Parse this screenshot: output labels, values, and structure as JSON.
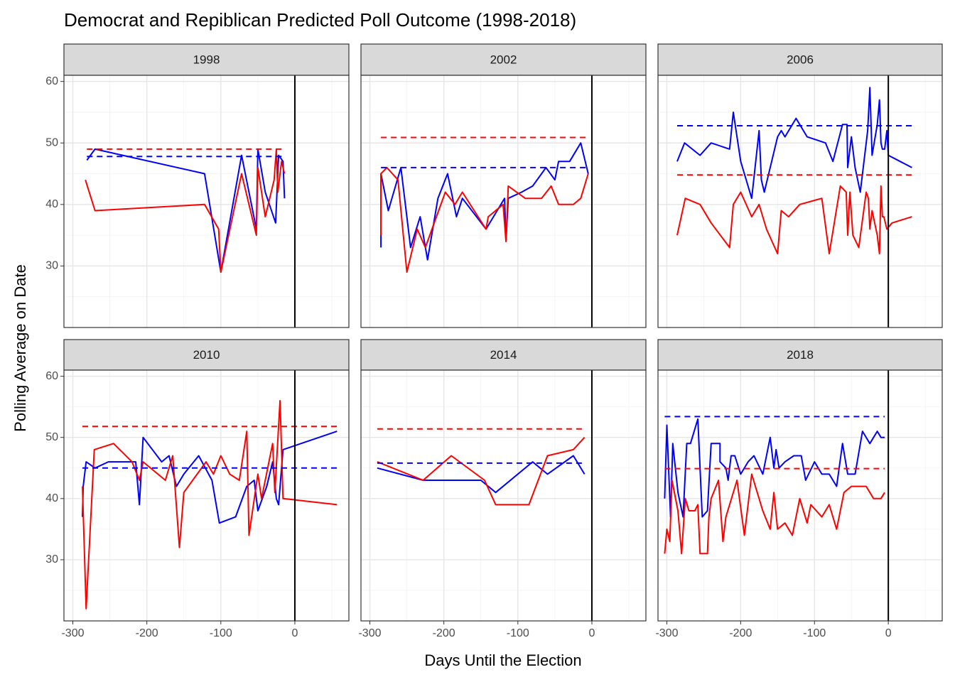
{
  "title": "Democrat and Repiblican Predicted Poll Outcome (1998-2018)",
  "x_label": "Days Until the Election",
  "y_label": "Polling Average on Date",
  "chart_data": [
    {
      "type": "line",
      "title": "1998",
      "xlim": [
        -312,
        73
      ],
      "ylim": [
        20,
        61
      ],
      "xticks": [
        -300,
        -200,
        -100,
        0
      ],
      "yticks": [
        30,
        40,
        50,
        60
      ],
      "xminor": [
        -250,
        -150,
        -50,
        50
      ],
      "yminor": [
        25,
        35,
        45,
        55
      ],
      "vline": 0,
      "grid": true,
      "series": [
        {
          "color": "#0000ff",
          "x": [
            -281,
            -270,
            -122,
            -100,
            -72,
            -52,
            -50,
            -40,
            -26,
            -22,
            -16,
            -14
          ],
          "values": [
            47.2,
            49,
            45,
            29,
            48,
            36,
            49,
            42,
            37,
            48,
            47,
            41
          ]
        },
        {
          "color": "#ff0000",
          "x": [
            -283,
            -270,
            -122,
            -103,
            -100,
            -72,
            -52,
            -50,
            -40,
            -28,
            -25,
            -23,
            -18,
            -14
          ],
          "values": [
            44,
            39,
            40,
            36,
            29,
            45,
            35,
            46,
            38,
            44,
            49,
            42,
            47,
            45
          ]
        },
        {
          "color": "#ff0000",
          "dash": true,
          "x": [
            -281,
            -14
          ],
          "values": [
            49,
            49
          ]
        },
        {
          "color": "#0000ff",
          "dash": true,
          "x": [
            -281,
            -14
          ],
          "values": [
            47.8,
            47.8
          ]
        }
      ]
    },
    {
      "type": "line",
      "title": "2002",
      "xlim": [
        -312,
        73
      ],
      "ylim": [
        20,
        61
      ],
      "xticks": [
        -300,
        -200,
        -100,
        0
      ],
      "yticks": [
        30,
        40,
        50,
        60
      ],
      "xminor": [
        -250,
        -150,
        -50,
        50
      ],
      "yminor": [
        25,
        35,
        45,
        55
      ],
      "vline": 0,
      "grid": true,
      "series": [
        {
          "color": "#0000ff",
          "x": [
            -285,
            -285,
            -275,
            -258,
            -245,
            -232,
            -222,
            -208,
            -195,
            -183,
            -175,
            -143,
            -118,
            -116,
            -113,
            -95,
            -80,
            -62,
            -50,
            -45,
            -30,
            -15,
            -5
          ],
          "values": [
            33,
            45,
            39,
            46,
            33,
            38,
            31,
            41,
            45,
            38,
            41,
            36,
            41,
            34,
            41,
            42,
            43,
            46,
            44,
            47,
            47,
            50,
            45
          ]
        },
        {
          "color": "#ff0000",
          "x": [
            -285,
            -285,
            -277,
            -262,
            -250,
            -236,
            -225,
            -198,
            -185,
            -175,
            -143,
            -140,
            -120,
            -116,
            -113,
            -90,
            -68,
            -55,
            -45,
            -25,
            -15,
            -5
          ],
          "values": [
            35,
            45,
            46,
            44,
            29,
            36,
            33,
            42,
            40,
            42,
            36,
            38,
            40,
            34,
            43,
            41,
            41,
            43,
            40,
            40,
            41,
            45
          ]
        },
        {
          "color": "#ff0000",
          "dash": true,
          "x": [
            -285,
            -5
          ],
          "values": [
            50.9,
            50.9
          ]
        },
        {
          "color": "#0000ff",
          "dash": true,
          "x": [
            -285,
            -5
          ],
          "values": [
            46,
            46
          ]
        }
      ]
    },
    {
      "type": "line",
      "title": "2006",
      "xlim": [
        -312,
        73
      ],
      "ylim": [
        20,
        61
      ],
      "xticks": [
        -300,
        -200,
        -100,
        0
      ],
      "yticks": [
        30,
        40,
        50,
        60
      ],
      "xminor": [
        -250,
        -150,
        -50,
        50
      ],
      "yminor": [
        25,
        35,
        45,
        55
      ],
      "vline": 0,
      "grid": true,
      "series": [
        {
          "color": "#0000ff",
          "x": [
            -286,
            -276,
            -255,
            -240,
            -215,
            -210,
            -200,
            -185,
            -175,
            -172,
            -168,
            -150,
            -145,
            -140,
            -125,
            -110,
            -85,
            -75,
            -62,
            -56,
            -55,
            -50,
            -45,
            -38,
            -28,
            -25,
            -22,
            -15,
            -12,
            -10,
            -8,
            -5,
            -2,
            0,
            32
          ],
          "values": [
            47,
            50,
            48,
            50,
            49,
            55,
            47,
            41,
            52,
            44,
            42,
            51,
            52,
            51,
            54,
            51,
            50,
            47,
            53,
            53,
            46,
            51,
            46,
            42,
            52,
            59,
            48,
            53,
            57,
            50,
            49,
            49,
            52,
            48,
            46
          ]
        },
        {
          "color": "#ff0000",
          "x": [
            -286,
            -275,
            -255,
            -240,
            -215,
            -210,
            -200,
            -185,
            -175,
            -165,
            -150,
            -145,
            -135,
            -120,
            -90,
            -80,
            -65,
            -57,
            -55,
            -52,
            -48,
            -40,
            -30,
            -27,
            -25,
            -22,
            -15,
            -12,
            -10,
            -8,
            -6,
            -2,
            5,
            32
          ],
          "values": [
            35,
            41,
            40,
            37,
            33,
            40,
            42,
            38,
            40,
            36,
            32,
            39,
            38,
            40,
            41,
            32,
            43,
            42,
            35,
            42,
            35,
            33,
            42,
            41,
            36,
            39,
            35,
            32,
            43,
            38,
            38,
            36,
            37,
            38
          ]
        },
        {
          "color": "#0000ff",
          "dash": true,
          "x": [
            -286,
            32
          ],
          "values": [
            52.8,
            52.8
          ]
        },
        {
          "color": "#ff0000",
          "dash": true,
          "x": [
            -286,
            32
          ],
          "values": [
            44.8,
            44.8
          ]
        }
      ]
    },
    {
      "type": "line",
      "title": "2010",
      "xlim": [
        -312,
        73
      ],
      "ylim": [
        20,
        61
      ],
      "xticks": [
        -300,
        -200,
        -100,
        0
      ],
      "yticks": [
        30,
        40,
        50,
        60
      ],
      "xminor": [
        -250,
        -150,
        -50,
        50
      ],
      "yminor": [
        25,
        35,
        45,
        55
      ],
      "vline": 0,
      "grid": true,
      "series": [
        {
          "color": "#0000ff",
          "x": [
            -287,
            -286,
            -282,
            -270,
            -252,
            -215,
            -210,
            -205,
            -180,
            -170,
            -160,
            -150,
            -130,
            -112,
            -102,
            -80,
            -65,
            -55,
            -50,
            -38,
            -30,
            -25,
            -22,
            -16,
            57
          ],
          "values": [
            37,
            42,
            46,
            45,
            46,
            46,
            39,
            50,
            46,
            47,
            42,
            44,
            47,
            43,
            36,
            37,
            42,
            43,
            38,
            42,
            46,
            40,
            39,
            48,
            51
          ]
        },
        {
          "color": "#ff0000",
          "x": [
            -287,
            -282,
            -271,
            -245,
            -220,
            -210,
            -205,
            -175,
            -165,
            -156,
            -150,
            -120,
            -110,
            -100,
            -88,
            -75,
            -65,
            -62,
            -50,
            -45,
            -30,
            -27,
            -20,
            -16,
            57
          ],
          "values": [
            42,
            22,
            48,
            49,
            46,
            43,
            46,
            43,
            47,
            32,
            41,
            46,
            44,
            47,
            44,
            43,
            51,
            34,
            44,
            40,
            49,
            41,
            56,
            40,
            39
          ]
        },
        {
          "color": "#ff0000",
          "dash": true,
          "x": [
            -287,
            57
          ],
          "values": [
            51.8,
            51.8
          ]
        },
        {
          "color": "#0000ff",
          "dash": true,
          "x": [
            -287,
            57
          ],
          "values": [
            45,
            45
          ]
        }
      ]
    },
    {
      "type": "line",
      "title": "2014",
      "xlim": [
        -312,
        73
      ],
      "ylim": [
        20,
        61
      ],
      "xticks": [
        -300,
        -200,
        -100,
        0
      ],
      "yticks": [
        30,
        40,
        50,
        60
      ],
      "xminor": [
        -250,
        -150,
        -50,
        50
      ],
      "yminor": [
        25,
        35,
        45,
        55
      ],
      "vline": 0,
      "grid": true,
      "series": [
        {
          "color": "#0000ff",
          "x": [
            -290,
            -228,
            -150,
            -130,
            -80,
            -60,
            -25,
            -10
          ],
          "values": [
            45,
            43,
            43,
            41,
            46,
            44,
            47,
            44
          ]
        },
        {
          "color": "#ff0000",
          "x": [
            -290,
            -228,
            -190,
            -145,
            -130,
            -85,
            -60,
            -25,
            -10
          ],
          "values": [
            46,
            43,
            47,
            43,
            39,
            39,
            47,
            48,
            50
          ]
        },
        {
          "color": "#ff0000",
          "dash": true,
          "x": [
            -290,
            -10
          ],
          "values": [
            51.4,
            51.4
          ]
        },
        {
          "color": "#0000ff",
          "dash": true,
          "x": [
            -290,
            -10
          ],
          "values": [
            45.8,
            45.8
          ]
        }
      ]
    },
    {
      "type": "line",
      "title": "2018",
      "xlim": [
        -312,
        73
      ],
      "ylim": [
        20,
        61
      ],
      "xticks": [
        -300,
        -200,
        -100,
        0
      ],
      "yticks": [
        30,
        40,
        50,
        60
      ],
      "xminor": [
        -250,
        -150,
        -50,
        50
      ],
      "yminor": [
        25,
        35,
        45,
        55
      ],
      "vline": 0,
      "grid": true,
      "series": [
        {
          "color": "#0000ff",
          "x": [
            -303,
            -300,
            -295,
            -292,
            -285,
            -278,
            -273,
            -268,
            -258,
            -252,
            -245,
            -240,
            -228,
            -228,
            -220,
            -217,
            -213,
            -208,
            -200,
            -190,
            -182,
            -170,
            -160,
            -155,
            -152,
            -148,
            -140,
            -128,
            -118,
            -112,
            -100,
            -90,
            -80,
            -70,
            -62,
            -55,
            -45,
            -35,
            -25,
            -20,
            -15,
            -10,
            -5
          ],
          "values": [
            40,
            52,
            37,
            49,
            41,
            37,
            49,
            49,
            53,
            37,
            38,
            49,
            49,
            46,
            45,
            43,
            47,
            47,
            44,
            46,
            47,
            44,
            50,
            45,
            48,
            45,
            46,
            47,
            47,
            43,
            46,
            44,
            44,
            42,
            49,
            44,
            44,
            51,
            49,
            50,
            51,
            50,
            50
          ]
        },
        {
          "color": "#ff0000",
          "x": [
            -303,
            -300,
            -296,
            -293,
            -285,
            -280,
            -275,
            -270,
            -262,
            -258,
            -255,
            -245,
            -243,
            -240,
            -230,
            -224,
            -220,
            -205,
            -195,
            -185,
            -170,
            -160,
            -155,
            -150,
            -140,
            -130,
            -120,
            -110,
            -105,
            -90,
            -80,
            -70,
            -60,
            -50,
            -30,
            -20,
            -10,
            -5
          ],
          "values": [
            31,
            35,
            33,
            43,
            38,
            31,
            40,
            38,
            38,
            39,
            31,
            31,
            37,
            40,
            43,
            33,
            37,
            43,
            34,
            44,
            38,
            35,
            41,
            35,
            36,
            34,
            40,
            36,
            39,
            37,
            39,
            35,
            41,
            42,
            42,
            40,
            40,
            41
          ]
        },
        {
          "color": "#0000ff",
          "dash": true,
          "x": [
            -303,
            -5
          ],
          "values": [
            53.4,
            53.4
          ]
        },
        {
          "color": "#ff0000",
          "dash": true,
          "x": [
            -303,
            -5
          ],
          "values": [
            44.9,
            44.9
          ]
        }
      ]
    }
  ]
}
